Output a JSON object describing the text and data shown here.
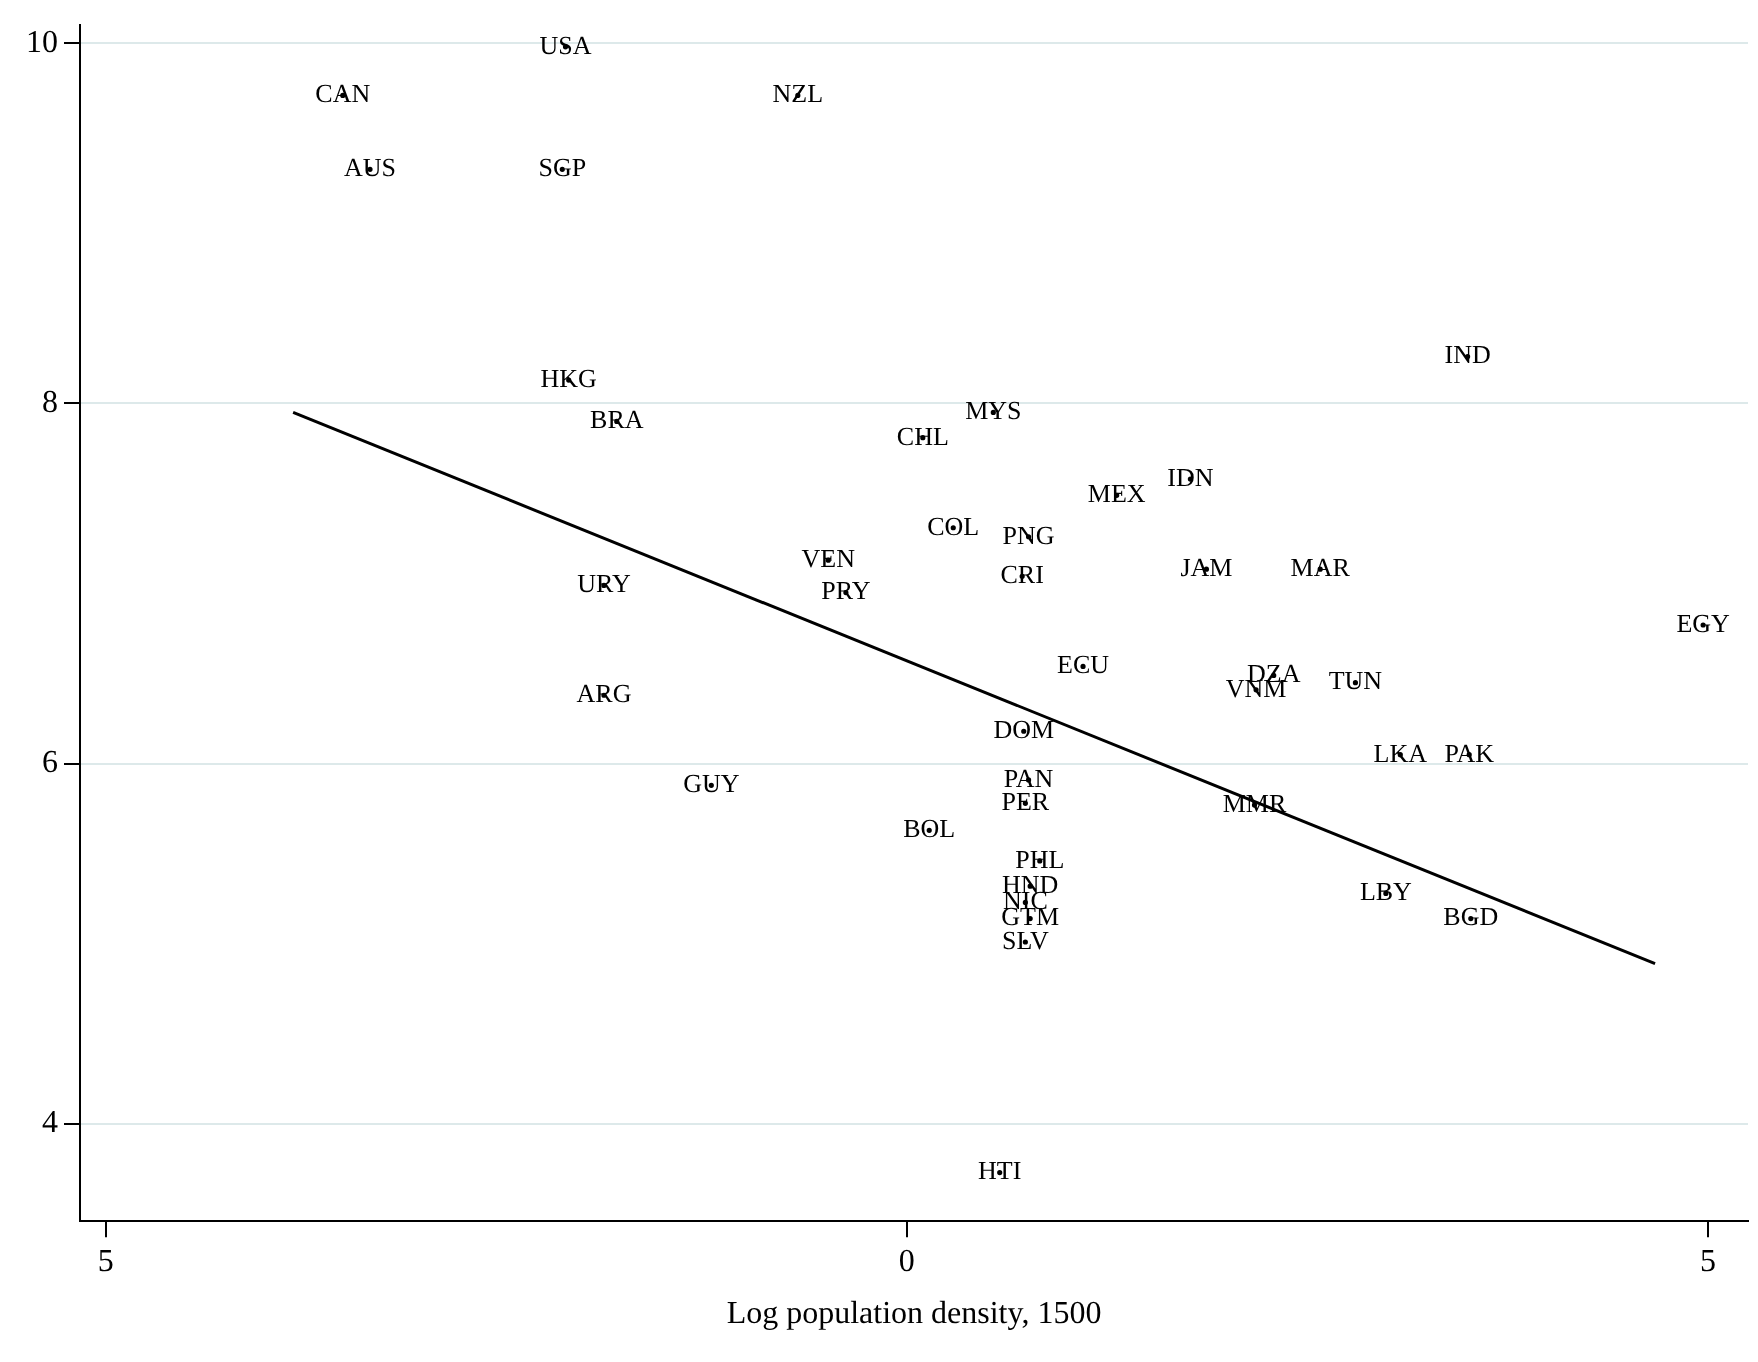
{
  "chart_data": {
    "type": "scatter",
    "xlabel": "Log population density, 1500",
    "xlim": [
      -5.16,
      5.25
    ],
    "xticks": [
      {
        "value": -5,
        "label": "5"
      },
      0,
      5
    ],
    "ylim": [
      3.46,
      10.1
    ],
    "yticks": [
      4,
      6,
      8,
      10
    ],
    "grid": "y",
    "series": [
      {
        "type": "scatter",
        "color": "#000000",
        "x": [
          -2.13,
          -3.52,
          -0.68,
          -3.35,
          -2.15,
          -2.11,
          -1.81,
          3.5,
          0.54,
          0.1,
          1.31,
          1.77,
          0.29,
          0.76,
          -0.49,
          1.87,
          2.58,
          -1.89,
          -0.38,
          0.72,
          4.97,
          1.1,
          2.29,
          2.18,
          2.8,
          -1.89,
          0.73,
          3.08,
          3.51,
          -1.22,
          0.76,
          0.74,
          2.17,
          0.14,
          0.83,
          0.77,
          0.74,
          0.77,
          0.74,
          2.99,
          3.52,
          0.58
        ],
        "values": [
          9.98,
          9.71,
          9.71,
          9.3,
          9.3,
          8.13,
          7.9,
          8.26,
          7.95,
          7.81,
          7.49,
          7.58,
          7.31,
          7.26,
          7.13,
          7.08,
          7.08,
          6.99,
          6.95,
          7.04,
          6.77,
          6.54,
          6.49,
          6.41,
          6.45,
          6.38,
          6.18,
          6.05,
          6.05,
          5.88,
          5.91,
          5.78,
          5.77,
          5.63,
          5.46,
          5.32,
          5.23,
          5.14,
          5.01,
          5.28,
          5.14,
          3.73
        ],
        "value_labels": [
          "USA",
          "CAN",
          "NZL",
          "AUS",
          "SGP",
          "HKG",
          "BRA",
          "IND",
          "MYS",
          "CHL",
          "MEX",
          "IDN",
          "COL",
          "PNG",
          "VEN",
          "JAM",
          "MAR",
          "URY",
          "PRY",
          "CRI",
          "EGY",
          "ECU",
          "DZA",
          "VNM",
          "TUN",
          "ARG",
          "DOM",
          "LKA",
          "PAK",
          "GUY",
          "PAN",
          "PER",
          "MMR",
          "BOL",
          "PHL",
          "HND",
          "NIC",
          "GTM",
          "SLV",
          "LBY",
          "BGD",
          "HTI"
        ]
      },
      {
        "type": "line",
        "color": "#000000",
        "line_style": "solid",
        "x": [
          -3.83,
          4.67
        ],
        "values": [
          7.95,
          4.89
        ]
      }
    ]
  }
}
